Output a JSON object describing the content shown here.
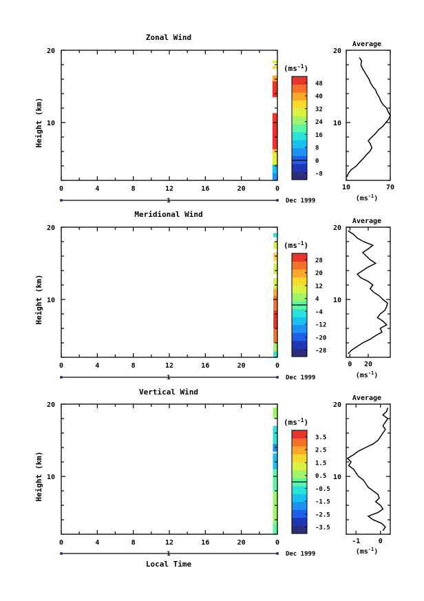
{
  "figure": {
    "xlabel": "Local Time",
    "date_label": "Dec 1999",
    "timeline_label": "1"
  },
  "chart_data": [
    {
      "type": "heatmap",
      "title": "Zonal Wind",
      "xlabel": "",
      "ylabel": "Height (km)",
      "xlim": [
        0,
        24
      ],
      "ylim": [
        2,
        20
      ],
      "xticks": [
        "0",
        "4",
        "8",
        "12",
        "16",
        "20",
        "0"
      ],
      "yticks": [
        "10",
        "20"
      ],
      "colorbar": {
        "unit_label": "(ms",
        "unit_exp": "-1",
        "ticks": [
          "48",
          "40",
          "32",
          "24",
          "16",
          "8",
          "0",
          "-8"
        ],
        "vmin": -12,
        "vmax": 52
      },
      "cells": [
        {
          "t0": 23.45,
          "t1": 24,
          "z0": 2.0,
          "z1": 3.0,
          "value": 4
        },
        {
          "t0": 23.45,
          "t1": 24,
          "z0": 3.0,
          "z1": 4.2,
          "value": 9
        },
        {
          "t0": 23.45,
          "t1": 24,
          "z0": 4.2,
          "z1": 5.5,
          "value": 28
        },
        {
          "t0": 23.45,
          "t1": 24,
          "z0": 5.5,
          "z1": 6.3,
          "value": 35
        },
        {
          "t0": 23.45,
          "t1": 24,
          "z0": 6.3,
          "z1": 11.3,
          "value": 48
        },
        {
          "t0": 23.45,
          "t1": 24,
          "z0": 13.5,
          "z1": 15.7,
          "value": 48
        },
        {
          "t0": 23.45,
          "t1": 24,
          "z0": 15.7,
          "z1": 16.5,
          "value": 42
        },
        {
          "t0": 23.45,
          "t1": 24,
          "z0": 17.4,
          "z1": 17.8,
          "value": 36
        },
        {
          "t0": 23.45,
          "t1": 24,
          "z0": 18.2,
          "z1": 18.6,
          "value": 32
        }
      ],
      "average": {
        "title": "Average",
        "xlabel": "(ms",
        "xlabel_exp": "-1",
        "xlim": [
          10,
          70
        ],
        "xticks": [
          "10",
          "70"
        ],
        "ylim": [
          2,
          20
        ],
        "yticks": [
          "10",
          "20"
        ],
        "profile": [
          [
            11,
            2.5
          ],
          [
            13,
            3
          ],
          [
            17,
            3.5
          ],
          [
            24,
            4
          ],
          [
            28,
            4.5
          ],
          [
            33,
            5
          ],
          [
            37,
            5.5
          ],
          [
            42,
            6
          ],
          [
            45,
            6.5
          ],
          [
            43,
            7
          ],
          [
            40,
            7.5
          ],
          [
            45,
            8
          ],
          [
            50,
            8.5
          ],
          [
            54,
            9
          ],
          [
            60,
            9.5
          ],
          [
            64,
            10
          ],
          [
            68,
            10.5
          ],
          [
            70,
            11
          ],
          [
            67,
            11.5
          ],
          [
            65,
            12
          ],
          [
            60,
            12.5
          ],
          [
            57,
            13
          ],
          [
            55,
            13.5
          ],
          [
            52,
            14
          ],
          [
            50,
            14.5
          ],
          [
            46,
            15
          ],
          [
            43,
            15.5
          ],
          [
            41,
            16
          ],
          [
            38,
            16.5
          ],
          [
            35,
            17
          ],
          [
            32,
            17.5
          ],
          [
            30,
            18
          ],
          [
            31,
            18.5
          ],
          [
            28,
            19
          ]
        ]
      }
    },
    {
      "type": "heatmap",
      "title": "Meridional Wind",
      "xlabel": "",
      "ylabel": "Height (km)",
      "xlim": [
        0,
        24
      ],
      "ylim": [
        2,
        20
      ],
      "xticks": [
        "0",
        "4",
        "8",
        "12",
        "16",
        "20",
        "0"
      ],
      "yticks": [
        "10",
        "20"
      ],
      "colorbar": {
        "unit_label": "(ms",
        "unit_exp": "-1",
        "ticks": [
          "28",
          "20",
          "12",
          "4",
          "-4",
          "-12",
          "-20",
          "-28"
        ],
        "vmin": -32,
        "vmax": 32
      },
      "cells": [
        {
          "t0": 23.55,
          "t1": 24,
          "z0": 2.0,
          "z1": 2.8,
          "value": -6
        },
        {
          "t0": 23.55,
          "t1": 24,
          "z0": 2.8,
          "z1": 4.0,
          "value": 3
        },
        {
          "t0": 23.55,
          "t1": 24,
          "z0": 4.0,
          "z1": 6.0,
          "value": 26
        },
        {
          "t0": 23.55,
          "t1": 24,
          "z0": 6.0,
          "z1": 8.5,
          "value": 28
        },
        {
          "t0": 23.55,
          "t1": 24,
          "z0": 8.5,
          "z1": 10.5,
          "value": 26
        },
        {
          "t0": 23.55,
          "t1": 24,
          "z0": 10.5,
          "z1": 11.5,
          "value": 18
        },
        {
          "t0": 23.55,
          "t1": 24,
          "z0": 11.5,
          "z1": 13.0,
          "value": 10
        },
        {
          "t0": 23.55,
          "t1": 24,
          "z0": 13.5,
          "z1": 15.0,
          "value": 12
        },
        {
          "t0": 23.55,
          "t1": 24,
          "z0": 15.3,
          "z1": 16.5,
          "value": 14
        },
        {
          "t0": 23.55,
          "t1": 24,
          "z0": 17.0,
          "z1": 18.0,
          "value": 8
        },
        {
          "t0": 23.55,
          "t1": 24,
          "z0": 18.6,
          "z1": 19.2,
          "value": -4
        }
      ],
      "average": {
        "title": "Average",
        "xlabel": "(ms",
        "xlabel_exp": "-1",
        "xlim": [
          -4,
          44
        ],
        "xticks": [
          "0",
          "20"
        ],
        "ylim": [
          2,
          20
        ],
        "yticks": [
          "10",
          "20"
        ],
        "profile": [
          [
            -2,
            2.5
          ],
          [
            2,
            3
          ],
          [
            8,
            3.5
          ],
          [
            14,
            4
          ],
          [
            22,
            4.5
          ],
          [
            28,
            5
          ],
          [
            35,
            5.5
          ],
          [
            33,
            6
          ],
          [
            40,
            6.5
          ],
          [
            36,
            7
          ],
          [
            30,
            7.5
          ],
          [
            33,
            8
          ],
          [
            38,
            8.5
          ],
          [
            40,
            9
          ],
          [
            41,
            9.5
          ],
          [
            36,
            10
          ],
          [
            32,
            10.5
          ],
          [
            26,
            11
          ],
          [
            22,
            11.5
          ],
          [
            25,
            12
          ],
          [
            20,
            12.5
          ],
          [
            12,
            13
          ],
          [
            8,
            13.5
          ],
          [
            14,
            14
          ],
          [
            20,
            14.5
          ],
          [
            28,
            15
          ],
          [
            22,
            15.5
          ],
          [
            18,
            16
          ],
          [
            14,
            16.5
          ],
          [
            20,
            17
          ],
          [
            25,
            17.5
          ],
          [
            15,
            18
          ],
          [
            8,
            18.5
          ],
          [
            4,
            19
          ],
          [
            -2,
            19.5
          ]
        ]
      }
    },
    {
      "type": "heatmap",
      "title": "Vertical Wind",
      "xlabel": "",
      "ylabel": "Height (km)",
      "xlim": [
        0,
        24
      ],
      "ylim": [
        2,
        20
      ],
      "xticks": [
        "0",
        "4",
        "8",
        "12",
        "16",
        "20",
        "0"
      ],
      "yticks": [
        "10",
        "20"
      ],
      "colorbar": {
        "unit_label": "(ms",
        "unit_exp": "-1",
        "ticks": [
          "3.5",
          "2.5",
          "1.5",
          "0.5",
          "-0.5",
          "-1.5",
          "-2.5",
          "-3.5"
        ],
        "vmin": -4,
        "vmax": 4
      },
      "cells": [
        {
          "t0": 23.5,
          "t1": 24,
          "z0": 2.0,
          "z1": 3.5,
          "value": 0.2
        },
        {
          "t0": 23.5,
          "t1": 24,
          "z0": 3.5,
          "z1": 8.0,
          "value": 0.4
        },
        {
          "t0": 23.5,
          "t1": 24,
          "z0": 8.0,
          "z1": 11.0,
          "value": -0.2
        },
        {
          "t0": 23.5,
          "t1": 24,
          "z0": 11.0,
          "z1": 13.2,
          "value": -1.0
        },
        {
          "t0": 23.5,
          "t1": 24,
          "z0": 13.4,
          "z1": 14.5,
          "value": -1.6
        },
        {
          "t0": 23.5,
          "t1": 24,
          "z0": 14.5,
          "z1": 17.0,
          "value": -0.4
        },
        {
          "t0": 23.5,
          "t1": 24,
          "z0": 18.0,
          "z1": 19.5,
          "value": 0.5
        }
      ],
      "average": {
        "title": "Average",
        "xlabel": "(ms",
        "xlabel_exp": "-1",
        "xlim": [
          -1.4,
          0.4
        ],
        "xticks": [
          "-1",
          "0"
        ],
        "ylim": [
          2,
          20
        ],
        "yticks": [
          "10",
          "20"
        ],
        "profile": [
          [
            0.1,
            2.5
          ],
          [
            0.2,
            3
          ],
          [
            0.05,
            3.5
          ],
          [
            -0.3,
            4
          ],
          [
            -0.5,
            4.5
          ],
          [
            -0.1,
            5
          ],
          [
            0.1,
            5.5
          ],
          [
            0.0,
            6
          ],
          [
            -0.2,
            6.5
          ],
          [
            -0.05,
            7
          ],
          [
            -0.1,
            7.5
          ],
          [
            -0.3,
            8
          ],
          [
            -0.5,
            8.5
          ],
          [
            -0.6,
            9
          ],
          [
            -0.7,
            9.5
          ],
          [
            -0.9,
            10
          ],
          [
            -1.0,
            10.5
          ],
          [
            -1.1,
            11
          ],
          [
            -1.3,
            11.5
          ],
          [
            -1.2,
            12
          ],
          [
            -1.35,
            12.5
          ],
          [
            -1.1,
            13
          ],
          [
            -0.9,
            13.5
          ],
          [
            -0.6,
            14
          ],
          [
            -0.3,
            14.5
          ],
          [
            -0.1,
            15
          ],
          [
            0.0,
            15.5
          ],
          [
            0.1,
            16
          ],
          [
            0.2,
            16.5
          ],
          [
            0.1,
            17
          ],
          [
            0.2,
            17.5
          ],
          [
            0.3,
            18
          ],
          [
            0.1,
            18.5
          ],
          [
            0.25,
            19
          ],
          [
            0.3,
            19.5
          ]
        ]
      }
    }
  ]
}
